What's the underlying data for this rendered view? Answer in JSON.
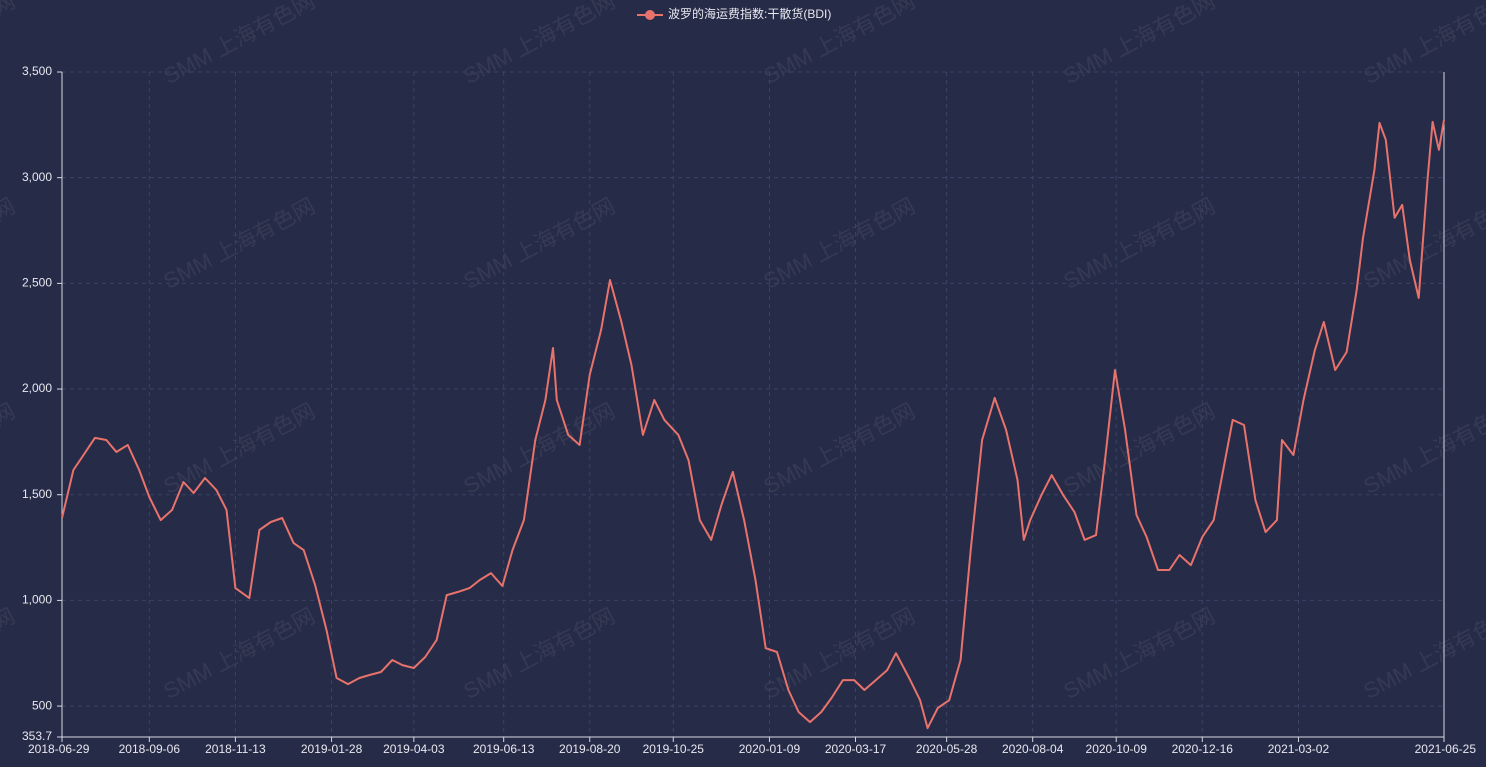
{
  "chart_data": {
    "type": "line",
    "watermark": "SMM 上海有色网",
    "grid": true,
    "ylim": [
      353.7,
      3500
    ],
    "yticks": [
      353.7,
      500,
      {
        "value": 1000,
        "label": "1,000"
      },
      {
        "value": 1500,
        "label": "1,500"
      },
      {
        "value": 2000,
        "label": "2,000"
      },
      {
        "value": 2500,
        "label": "2,500"
      },
      {
        "value": 3000,
        "label": "3,000"
      },
      {
        "value": 3500,
        "label": "3,500"
      }
    ],
    "xlim": [
      "2018-06-29",
      "2021-06-25"
    ],
    "xticks": [
      "2018-06-29",
      "2018-09-06",
      "2018-11-13",
      "2019-01-28",
      "2019-04-03",
      "2019-06-13",
      "2019-08-20",
      "2019-10-25",
      "2020-01-09",
      "2020-03-17",
      "2020-05-28",
      "2020-08-04",
      "2020-10-09",
      "2020-12-16",
      "2021-03-02",
      "2021-06-25"
    ],
    "x": [
      "2018-06-29",
      "2018-07-08",
      "2018-07-16",
      "2018-07-25",
      "2018-08-03",
      "2018-08-11",
      "2018-08-20",
      "2018-08-29",
      "2018-09-06",
      "2018-09-15",
      "2018-09-24",
      "2018-10-03",
      "2018-10-11",
      "2018-10-20",
      "2018-10-29",
      "2018-11-06",
      "2018-11-13",
      "2018-11-24",
      "2018-12-02",
      "2018-12-11",
      "2018-12-20",
      "2018-12-29",
      "2019-01-06",
      "2019-01-15",
      "2019-01-24",
      "2019-02-01",
      "2019-02-10",
      "2019-02-19",
      "2019-02-27",
      "2019-03-08",
      "2019-03-17",
      "2019-03-25",
      "2019-04-03",
      "2019-04-12",
      "2019-04-21",
      "2019-04-29",
      "2019-05-08",
      "2019-05-17",
      "2019-05-25",
      "2019-06-03",
      "2019-06-12",
      "2019-06-20",
      "2019-06-29",
      "2019-07-08",
      "2019-07-16",
      "2019-07-22",
      "2019-07-25",
      "2019-08-03",
      "2019-08-12",
      "2019-08-20",
      "2019-08-29",
      "2019-09-05",
      "2019-09-14",
      "2019-09-22",
      "2019-10-01",
      "2019-10-10",
      "2019-10-18",
      "2019-10-29",
      "2019-11-06",
      "2019-11-15",
      "2019-11-24",
      "2019-12-02",
      "2019-12-11",
      "2019-12-20",
      "2019-12-29",
      "2020-01-06",
      "2020-01-15",
      "2020-01-24",
      "2020-02-01",
      "2020-02-10",
      "2020-02-19",
      "2020-02-27",
      "2020-03-07",
      "2020-03-16",
      "2020-03-24",
      "2020-04-02",
      "2020-04-11",
      "2020-04-18",
      "2020-04-28",
      "2020-05-07",
      "2020-05-13",
      "2020-05-21",
      "2020-05-30",
      "2020-06-08",
      "2020-06-16",
      "2020-06-25",
      "2020-07-05",
      "2020-07-14",
      "2020-07-23",
      "2020-07-28",
      "2020-08-02",
      "2020-08-11",
      "2020-08-19",
      "2020-08-28",
      "2020-09-06",
      "2020-09-14",
      "2020-09-23",
      "2020-09-30",
      "2020-10-08",
      "2020-10-16",
      "2020-10-25",
      "2020-11-02",
      "2020-11-11",
      "2020-11-20",
      "2020-11-28",
      "2020-12-07",
      "2020-12-16",
      "2020-12-25",
      "2021-01-09",
      "2021-01-18",
      "2021-01-27",
      "2021-02-04",
      "2021-02-13",
      "2021-02-17",
      "2021-02-26",
      "2021-03-06",
      "2021-03-15",
      "2021-03-22",
      "2021-03-31",
      "2021-04-09",
      "2021-04-17",
      "2021-04-22",
      "2021-05-01",
      "2021-05-05",
      "2021-05-10",
      "2021-05-17",
      "2021-05-23",
      "2021-05-29",
      "2021-06-05",
      "2021-06-12",
      "2021-06-16",
      "2021-06-21",
      "2021-06-25"
    ],
    "series": [
      {
        "name": "波罗的海运费指数:干散货(BDI)",
        "color": "#e8736c",
        "values": [
          1390,
          1617,
          1688,
          1769,
          1759,
          1702,
          1735,
          1617,
          1489,
          1380,
          1428,
          1560,
          1508,
          1579,
          1522,
          1428,
          1058,
          1011,
          1333,
          1371,
          1390,
          1271,
          1238,
          1073,
          860,
          633,
          604,
          633,
          647,
          661,
          718,
          694,
          680,
          732,
          812,
          1025,
          1040,
          1058,
          1096,
          1129,
          1068,
          1238,
          1380,
          1759,
          1948,
          2194,
          1948,
          1783,
          1735,
          2067,
          2280,
          2516,
          2317,
          2113,
          1783,
          1948,
          1854,
          1783,
          1664,
          1380,
          1286,
          1451,
          1608,
          1380,
          1096,
          774,
          756,
          576,
          472,
          424,
          472,
          538,
          623,
          623,
          576,
          623,
          670,
          750,
          637,
          528,
          396,
          491,
          528,
          718,
          1238,
          1759,
          1958,
          1806,
          1570,
          1286,
          1380,
          1499,
          1593,
          1499,
          1418,
          1286,
          1309,
          1655,
          2090,
          1806,
          1404,
          1300,
          1144,
          1144,
          1215,
          1167,
          1300,
          1380,
          1854,
          1830,
          1475,
          1323,
          1380,
          1759,
          1688,
          1948,
          2185,
          2317,
          2090,
          2175,
          2469,
          2715,
          3037,
          3259,
          3179,
          2810,
          2871,
          2611,
          2431,
          2990,
          3264,
          3132,
          3273
        ]
      }
    ]
  }
}
